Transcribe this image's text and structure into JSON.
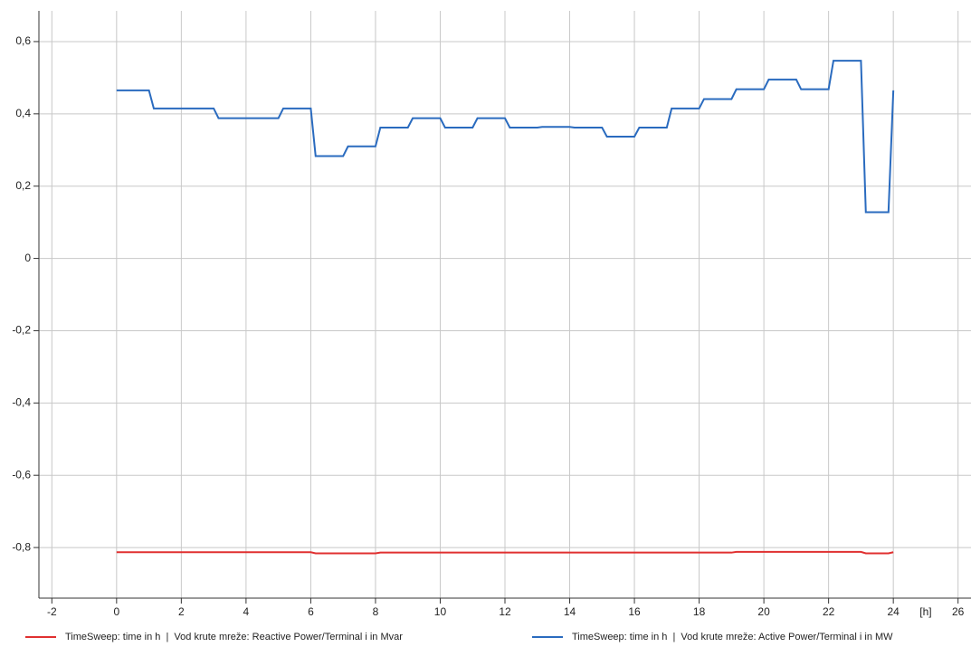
{
  "chart_data": {
    "type": "line",
    "xlabel": "[h]",
    "x": [
      0,
      1,
      1.15,
      2,
      2.15,
      3,
      3.15,
      4,
      4.15,
      5,
      5.15,
      6,
      6.15,
      7,
      7.15,
      8,
      8.15,
      9,
      9.15,
      10,
      10.15,
      11,
      11.15,
      12,
      12.15,
      13,
      13.15,
      14,
      14.15,
      15,
      15.15,
      16,
      16.15,
      17,
      17.15,
      18,
      18.15,
      19,
      19.15,
      20,
      20.15,
      21,
      21.15,
      22,
      22.15,
      23,
      23.15,
      23.85,
      24
    ],
    "series": [
      {
        "name": "TimeSweep: time in h  |  Vod krute mreže: Reactive Power/Terminal i in Mvar",
        "color": "#e03030",
        "values": [
          -0.813,
          -0.813,
          -0.813,
          -0.813,
          -0.813,
          -0.813,
          -0.813,
          -0.813,
          -0.813,
          -0.813,
          -0.813,
          -0.813,
          -0.816,
          -0.816,
          -0.816,
          -0.816,
          -0.814,
          -0.814,
          -0.814,
          -0.814,
          -0.814,
          -0.814,
          -0.814,
          -0.814,
          -0.814,
          -0.814,
          -0.814,
          -0.814,
          -0.814,
          -0.814,
          -0.814,
          -0.814,
          -0.814,
          -0.814,
          -0.814,
          -0.814,
          -0.814,
          -0.814,
          -0.812,
          -0.812,
          -0.812,
          -0.812,
          -0.812,
          -0.812,
          -0.812,
          -0.812,
          -0.816,
          -0.816,
          -0.813
        ]
      },
      {
        "name": "TimeSweep: time in h  |  Vod krute mreže: Active Power/Terminal i in MW",
        "color": "#2a6bbf",
        "values": [
          0.465,
          0.465,
          0.415,
          0.415,
          0.415,
          0.415,
          0.388,
          0.388,
          0.388,
          0.388,
          0.415,
          0.415,
          0.283,
          0.283,
          0.31,
          0.31,
          0.362,
          0.362,
          0.388,
          0.388,
          0.362,
          0.362,
          0.388,
          0.388,
          0.362,
          0.362,
          0.364,
          0.364,
          0.362,
          0.362,
          0.337,
          0.337,
          0.362,
          0.362,
          0.415,
          0.415,
          0.441,
          0.441,
          0.468,
          0.468,
          0.495,
          0.495,
          0.468,
          0.468,
          0.547,
          0.547,
          0.128,
          0.128,
          0.465
        ]
      }
    ],
    "xlim": [
      -2.4,
      26.4
    ],
    "xticks": [
      -2,
      0,
      2,
      4,
      6,
      8,
      10,
      12,
      14,
      16,
      18,
      20,
      22,
      24,
      26
    ],
    "ylim": [
      -0.94,
      0.685
    ],
    "yticks": [
      {
        "value": 0.6,
        "label": "0,6"
      },
      {
        "value": 0.4,
        "label": "0,4"
      },
      {
        "value": 0.2,
        "label": "0,2"
      },
      0,
      {
        "value": -0.2,
        "label": "-0,2"
      },
      {
        "value": -0.4,
        "label": "-0,4"
      },
      {
        "value": -0.6,
        "label": "-0,6"
      },
      {
        "value": -0.8,
        "label": "-0,8"
      }
    ],
    "grid": true,
    "legend": "bottom"
  }
}
